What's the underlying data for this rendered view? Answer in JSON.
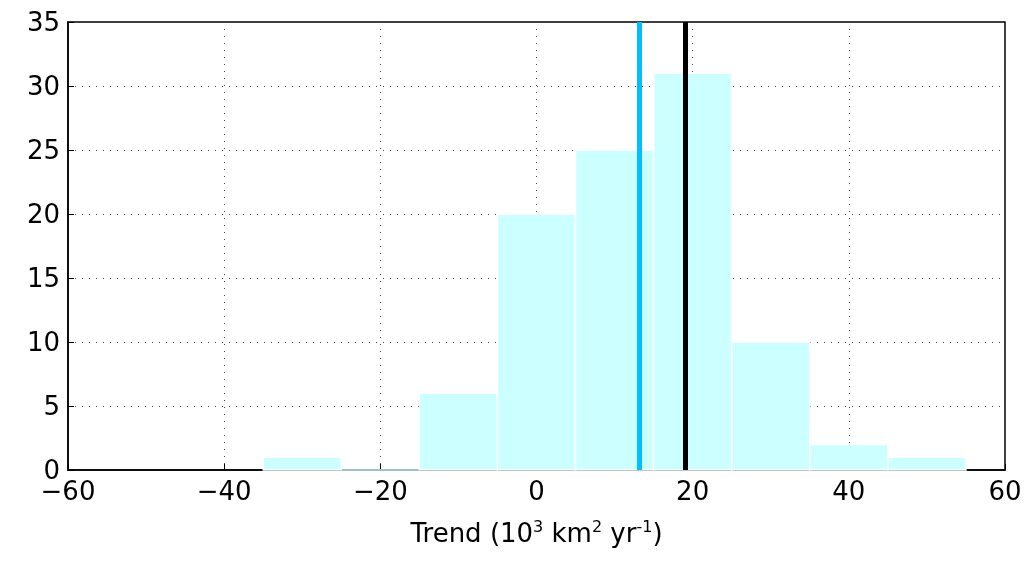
{
  "chart_data": {
    "type": "histogram",
    "xlabel": "Trend (10$^{3}$ km$^{2}$ yr$^{-1}$)",
    "bins": [
      -35,
      -25,
      -15,
      -5,
      5,
      15,
      25,
      35,
      45,
      55
    ],
    "values": [
      1,
      0,
      6,
      20,
      25,
      31,
      10,
      2,
      1
    ],
    "color": "#ccffff",
    "xlim": [
      -60,
      60
    ],
    "xticks": [
      -60,
      -40,
      -20,
      0,
      20,
      40,
      60
    ],
    "ylim": [
      0,
      35
    ],
    "yticks": [
      0,
      5,
      10,
      15,
      20,
      25,
      30,
      35
    ],
    "grid": true,
    "ref_lines": [
      {
        "axis": "x",
        "value": 13.1,
        "color": "#00bfff"
      },
      {
        "axis": "x",
        "value": 19.1,
        "color": "#000000"
      }
    ]
  }
}
